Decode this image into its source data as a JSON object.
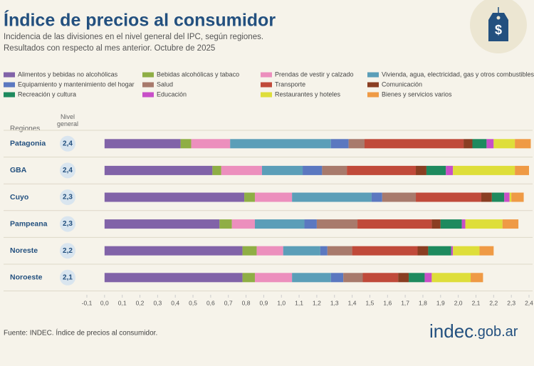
{
  "chart_data": {
    "type": "stacked-bar-horizontal",
    "title": "Índice de precios al consumidor",
    "subtitle": [
      "Incidencia de las divisiones en el nivel general del IPC, según regiones.",
      "Resultados con respecto al mes anterior. Octubre de 2025"
    ],
    "row_header": "Regiones",
    "level_header": "Nivel general",
    "categories": [
      "Patagonia",
      "GBA",
      "Cuyo",
      "Pampeana",
      "Noreste",
      "Noroeste"
    ],
    "nivel_general": {
      "values": [
        2.4,
        2.4,
        2.3,
        2.3,
        2.2,
        2.1
      ],
      "value_labels": [
        "2,4",
        "2,4",
        "2,3",
        "2,3",
        "2,2",
        "2,1"
      ]
    },
    "series": [
      {
        "name": "Alimentos y bebidas no alcohólicas",
        "color": "#8163a8",
        "values": [
          0.43,
          0.61,
          0.79,
          0.65,
          0.78,
          0.78
        ]
      },
      {
        "name": "Bebidas alcohólicas y tabaco",
        "color": "#8fae45",
        "values": [
          0.06,
          0.05,
          0.06,
          0.07,
          0.08,
          0.07
        ]
      },
      {
        "name": "Prendas de vestir y calzado",
        "color": "#ec8fbd",
        "values": [
          0.22,
          0.23,
          0.21,
          0.13,
          0.15,
          0.21
        ]
      },
      {
        "name": "Vivienda, agua, electricidad, gas y otros combustibles",
        "color": "#5b9eb8",
        "values": [
          0.57,
          0.23,
          0.45,
          0.28,
          0.21,
          0.22
        ]
      },
      {
        "name": "Equipamiento y mantenimiento del hogar",
        "color": "#5b78c0",
        "values": [
          0.1,
          0.11,
          0.06,
          0.07,
          0.04,
          0.07
        ]
      },
      {
        "name": "Salud",
        "color": "#a87a6c",
        "values": [
          0.09,
          0.14,
          0.19,
          0.23,
          0.14,
          0.11
        ]
      },
      {
        "name": "Transporte",
        "color": "#c04a3a",
        "values": [
          0.56,
          0.39,
          0.37,
          0.42,
          0.37,
          0.2
        ]
      },
      {
        "name": "Comunicación",
        "color": "#8a3e22",
        "values": [
          0.05,
          0.06,
          0.06,
          0.05,
          0.06,
          0.06
        ]
      },
      {
        "name": "Recreación y cultura",
        "color": "#1e8a5e",
        "values": [
          0.08,
          0.11,
          0.07,
          0.12,
          0.13,
          0.09
        ]
      },
      {
        "name": "Educación",
        "color": "#c84fc8",
        "values": [
          0.04,
          0.04,
          0.03,
          0.02,
          0.01,
          0.04
        ]
      },
      {
        "name": "Restaurantes y hoteles",
        "color": "#dede3a",
        "values": [
          0.12,
          0.35,
          0.01,
          0.21,
          0.15,
          0.22
        ]
      },
      {
        "name": "Bienes y servicios varios",
        "color": "#ef9a45",
        "values": [
          0.09,
          0.08,
          0.07,
          0.09,
          0.08,
          0.07
        ]
      }
    ],
    "xlim": [
      -0.1,
      2.4
    ],
    "xticks": [
      {
        "value": -0.1,
        "label": "-0,1"
      },
      {
        "value": 0,
        "label": "0,0"
      },
      {
        "value": 0.1,
        "label": "0,1"
      },
      {
        "value": 0.2,
        "label": "0,2"
      },
      {
        "value": 0.3,
        "label": "0,3"
      },
      {
        "value": 0.4,
        "label": "0,4"
      },
      {
        "value": 0.5,
        "label": "0,5"
      },
      {
        "value": 0.6,
        "label": "0,6"
      },
      {
        "value": 0.7,
        "label": "0,7"
      },
      {
        "value": 0.8,
        "label": "0,8"
      },
      {
        "value": 0.9,
        "label": "0,9"
      },
      {
        "value": 1.0,
        "label": "1,0"
      },
      {
        "value": 1.1,
        "label": "1,1"
      },
      {
        "value": 1.2,
        "label": "1,2"
      },
      {
        "value": 1.3,
        "label": "1,3"
      },
      {
        "value": 1.4,
        "label": "1,4"
      },
      {
        "value": 1.5,
        "label": "1,5"
      },
      {
        "value": 1.6,
        "label": "1,6"
      },
      {
        "value": 1.7,
        "label": "1,7"
      },
      {
        "value": 1.8,
        "label": "1,8"
      },
      {
        "value": 1.9,
        "label": "1,9"
      },
      {
        "value": 2.0,
        "label": "2,0"
      },
      {
        "value": 2.1,
        "label": "2,1"
      },
      {
        "value": 2.2,
        "label": "2,2"
      },
      {
        "value": 2.3,
        "label": "2,3"
      },
      {
        "value": 2.4,
        "label": "2,4"
      }
    ],
    "source": "Fuente: INDEC. Índice de precios al consumidor.",
    "brand": {
      "main": "indec",
      "suffix": ".gob.ar"
    }
  }
}
